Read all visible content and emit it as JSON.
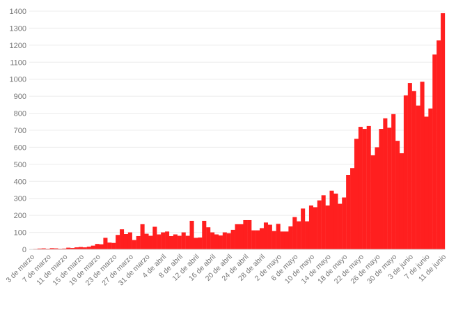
{
  "colors": {
    "bar": "#ff1f1f",
    "grid": "#ececec",
    "axis": "#cfcfcf",
    "tick_text": "#777777"
  },
  "chart_data": {
    "type": "bar",
    "title": "",
    "xlabel": "",
    "ylabel": "",
    "ylim": [
      0,
      1400
    ],
    "yticks": [
      0,
      100,
      200,
      300,
      400,
      500,
      600,
      700,
      800,
      900,
      1000,
      1100,
      1200,
      1300,
      1400
    ],
    "grid": "horizontal",
    "categories": [
      "3 de marzo",
      "4 de marzo",
      "5 de marzo",
      "6 de marzo",
      "7 de marzo",
      "8 de marzo",
      "9 de marzo",
      "10 de marzo",
      "11 de marzo",
      "12 de marzo",
      "13 de marzo",
      "14 de marzo",
      "15 de marzo",
      "16 de marzo",
      "17 de marzo",
      "18 de marzo",
      "19 de marzo",
      "20 de marzo",
      "21 de marzo",
      "22 de marzo",
      "23 de marzo",
      "24 de marzo",
      "25 de marzo",
      "26 de marzo",
      "27 de marzo",
      "28 de marzo",
      "29 de marzo",
      "30 de marzo",
      "31 de marzo",
      "1 de abril",
      "2 de abril",
      "3 de abril",
      "4 de abril",
      "5 de abril",
      "6 de abril",
      "7 de abril",
      "8 de abril",
      "9 de abril",
      "10 de abril",
      "11 de abril",
      "12 de abril",
      "13 de abril",
      "14 de abril",
      "15 de abril",
      "16 de abril",
      "17 de abril",
      "18 de abril",
      "19 de abril",
      "20 de abril",
      "21 de abril",
      "22 de abril",
      "23 de abril",
      "24 de abril",
      "25 de abril",
      "26 de abril",
      "27 de abril",
      "28 de abril",
      "29 de abril",
      "30 de abril",
      "1 de mayo",
      "2 de mayo",
      "3 de mayo",
      "4 de mayo",
      "5 de mayo",
      "6 de mayo",
      "7 de mayo",
      "8 de mayo",
      "9 de mayo",
      "10 de mayo",
      "11 de mayo",
      "12 de mayo",
      "13 de mayo",
      "14 de mayo",
      "15 de mayo",
      "16 de mayo",
      "17 de mayo",
      "18 de mayo",
      "19 de mayo",
      "20 de mayo",
      "21 de mayo",
      "22 de mayo",
      "23 de mayo",
      "24 de mayo",
      "25 de mayo",
      "26 de mayo",
      "27 de mayo",
      "28 de mayo",
      "29 de mayo",
      "30 de mayo",
      "31 de mayo",
      "1 de junio",
      "2 de junio",
      "3 de junio",
      "4 de junio",
      "5 de junio",
      "6 de junio",
      "7 de junio",
      "8 de junio",
      "9 de junio",
      "10 de junio",
      "11 de junio"
    ],
    "x_tick_labels": [
      "3 de marzo",
      "7 de marzo",
      "11 de marzo",
      "15 de marzo",
      "19 de marzo",
      "23 de marzo",
      "27 de marzo",
      "31 de marzo",
      "4 de abril",
      "8 de abril",
      "12 de abril",
      "16 de abril",
      "20 de abril",
      "24 de abril",
      "28 de abril",
      "2 de mayo",
      "6 de mayo",
      "10 de mayo",
      "14 de mayo",
      "18 de mayo",
      "22 de mayo",
      "26 de mayo",
      "30 de mayo",
      "3 de junio",
      "7 de junio",
      "11 de junio"
    ],
    "series": [
      {
        "values": [
          2,
          3,
          5,
          6,
          4,
          7,
          6,
          4,
          5,
          10,
          8,
          12,
          14,
          12,
          16,
          22,
          32,
          30,
          68,
          40,
          38,
          85,
          118,
          90,
          100,
          55,
          78,
          148,
          92,
          80,
          133,
          88,
          100,
          105,
          78,
          88,
          80,
          100,
          80,
          168,
          68,
          70,
          168,
          130,
          100,
          88,
          82,
          100,
          95,
          115,
          148,
          148,
          172,
          172,
          112,
          112,
          125,
          158,
          145,
          108,
          150,
          105,
          105,
          135,
          190,
          165,
          240,
          165,
          258,
          248,
          288,
          318,
          258,
          345,
          328,
          268,
          305,
          438,
          478,
          650,
          720,
          708,
          725,
          553,
          600,
          708,
          770,
          715,
          795,
          638,
          565,
          905,
          978,
          930,
          845,
          985,
          780,
          828,
          1145,
          1228,
          1388
        ]
      }
    ]
  }
}
